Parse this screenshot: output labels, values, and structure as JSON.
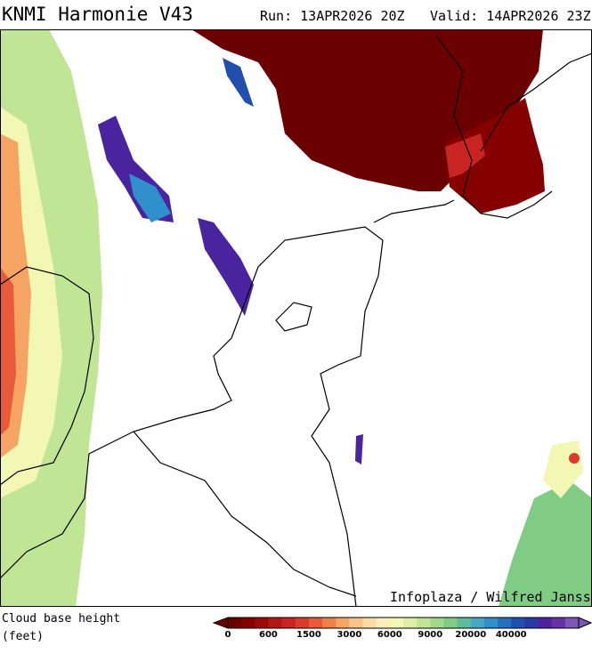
{
  "header": {
    "title": "KNMI Harmonie V43",
    "run": "Run: 13APR2026 20Z",
    "valid": "Valid: 14APR2026 23Z"
  },
  "credit": "Infoplaza / Wilfred Janssen",
  "legend": {
    "title": "Cloud base height",
    "unit": "(feet)",
    "ticks": [
      "0",
      "600",
      "1500",
      "3000",
      "6000",
      "9000",
      "20000",
      "40000"
    ],
    "colors": [
      "#6b0000",
      "#850000",
      "#9e0a0a",
      "#b41616",
      "#c82424",
      "#dc3a2c",
      "#e85a38",
      "#f08048",
      "#f5a464",
      "#f8c488",
      "#fbdca4",
      "#fdefbc",
      "#f2f7b4",
      "#dcefa2",
      "#c0e594",
      "#a2da8c",
      "#80cc84",
      "#5ebc9c",
      "#46a8c4",
      "#3090cc",
      "#2470be",
      "#2050ae",
      "#2a3aa2",
      "#4a249e",
      "#6630a8",
      "#7c56b4"
    ]
  }
}
